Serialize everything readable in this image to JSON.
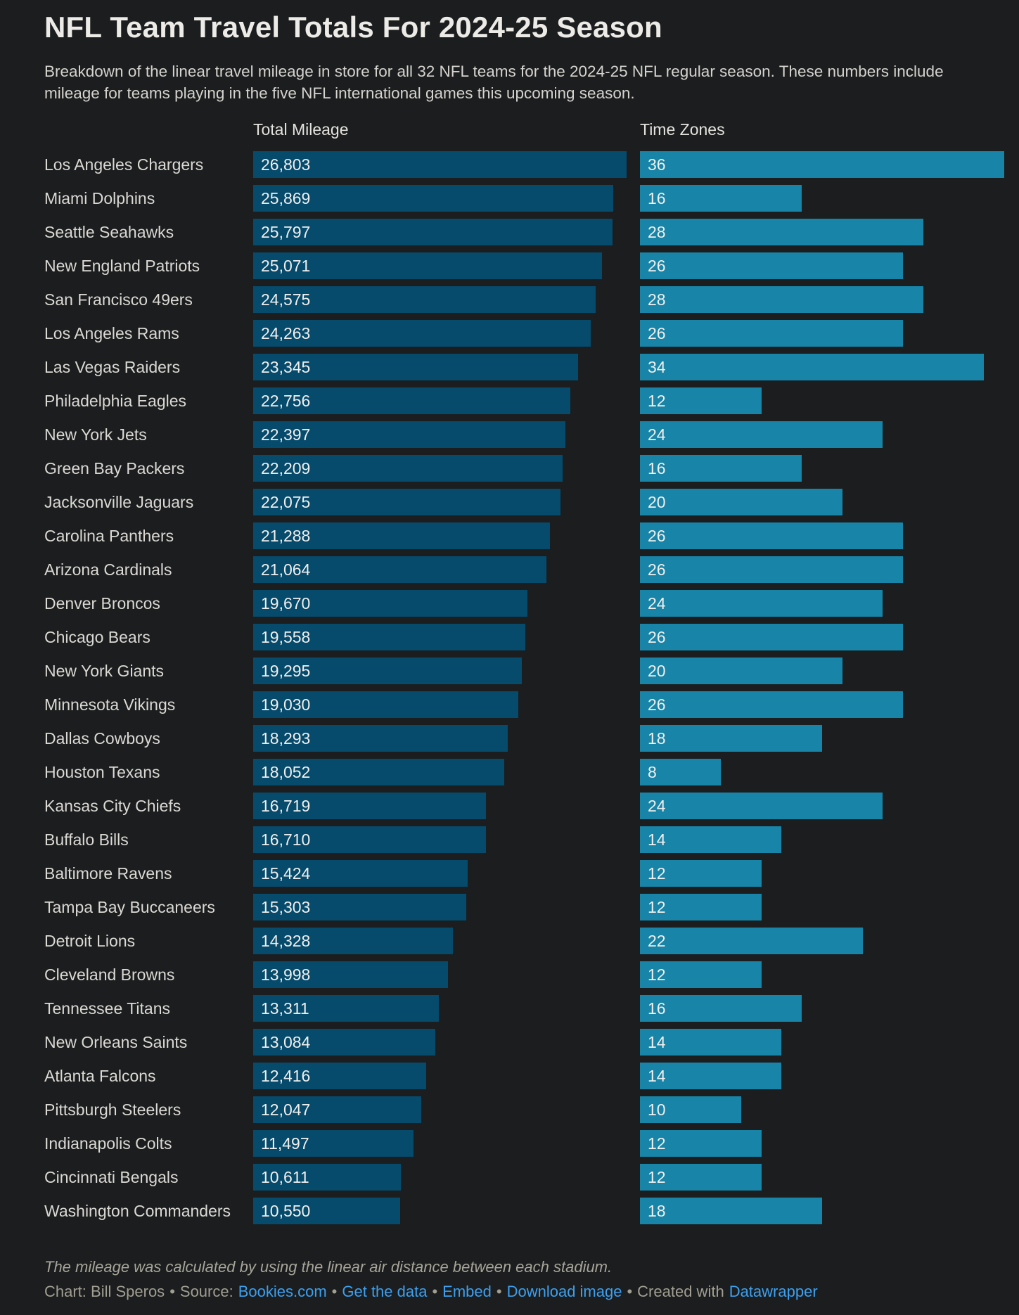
{
  "colors": {
    "background": "#1b1d1e",
    "mileage_bar": "#064a6c",
    "timezone_bar": "#1784a8",
    "link": "#3da0f0"
  },
  "chart_data": {
    "type": "bar",
    "orientation": "horizontal",
    "title": "NFL Team Travel Totals For 2024-25 Season",
    "subtitle": "Breakdown of the linear travel mileage in store for all 32 NFL teams for the 2024-25 NFL regular season. These numbers include mileage for teams playing in the five NFL international games this upcoming season.",
    "grid": "off",
    "legend": "column-headers",
    "categories": [
      "Los Angeles Chargers",
      "Miami Dolphins",
      "Seattle Seahawks",
      "New England Patriots",
      "San Francisco 49ers",
      "Los Angeles Rams",
      "Las Vegas Raiders",
      "Philadelphia Eagles",
      "New York Jets",
      "Green Bay Packers",
      "Jacksonville Jaguars",
      "Carolina Panthers",
      "Arizona Cardinals",
      "Denver Broncos",
      "Chicago Bears",
      "New York Giants",
      "Minnesota Vikings",
      "Dallas Cowboys",
      "Houston Texans",
      "Kansas City Chiefs",
      "Buffalo Bills",
      "Baltimore Ravens",
      "Tampa Bay Buccaneers",
      "Detroit Lions",
      "Cleveland Browns",
      "Tennessee Titans",
      "New Orleans Saints",
      "Atlanta Falcons",
      "Pittsburgh Steelers",
      "Indianapolis Colts",
      "Cincinnati Bengals",
      "Washington Commanders"
    ],
    "series": [
      {
        "name": "Total Mileage",
        "xlim": [
          0,
          26803
        ],
        "values": [
          26803,
          25869,
          25797,
          25071,
          24575,
          24263,
          23345,
          22756,
          22397,
          22209,
          22075,
          21288,
          21064,
          19670,
          19558,
          19295,
          19030,
          18293,
          18052,
          16719,
          16710,
          15424,
          15303,
          14328,
          13998,
          13311,
          13084,
          12416,
          12047,
          11497,
          10611,
          10550
        ],
        "labels": [
          "26,803",
          "25,869",
          "25,797",
          "25,071",
          "24,575",
          "24,263",
          "23,345",
          "22,756",
          "22,397",
          "22,209",
          "22,075",
          "21,288",
          "21,064",
          "19,670",
          "19,558",
          "19,295",
          "19,030",
          "18,293",
          "18,052",
          "16,719",
          "16,710",
          "15,424",
          "15,303",
          "14,328",
          "13,998",
          "13,311",
          "13,084",
          "12,416",
          "12,047",
          "11,497",
          "10,611",
          "10,550"
        ]
      },
      {
        "name": "Time Zones",
        "xlim": [
          0,
          36
        ],
        "values": [
          36,
          16,
          28,
          26,
          28,
          26,
          34,
          12,
          24,
          16,
          20,
          26,
          26,
          24,
          26,
          20,
          26,
          18,
          8,
          24,
          14,
          12,
          12,
          22,
          12,
          16,
          14,
          14,
          10,
          12,
          12,
          18
        ]
      }
    ]
  },
  "note": "The mileage was calculated by using the linear air distance between each stadium.",
  "credits": {
    "segments": [
      {
        "text": "Chart: Bill Speros",
        "type": "text"
      },
      {
        "text": "•",
        "type": "sep"
      },
      {
        "text": "Source:",
        "type": "text"
      },
      {
        "text": "Bookies.com",
        "type": "link"
      },
      {
        "text": "•",
        "type": "sep"
      },
      {
        "text": "Get the data",
        "type": "link"
      },
      {
        "text": "•",
        "type": "sep"
      },
      {
        "text": "Embed",
        "type": "link"
      },
      {
        "text": "•",
        "type": "sep"
      },
      {
        "text": "Download image",
        "type": "link"
      },
      {
        "text": "•",
        "type": "sep"
      },
      {
        "text": "Created with",
        "type": "text"
      },
      {
        "text": "Datawrapper",
        "type": "link"
      }
    ]
  }
}
